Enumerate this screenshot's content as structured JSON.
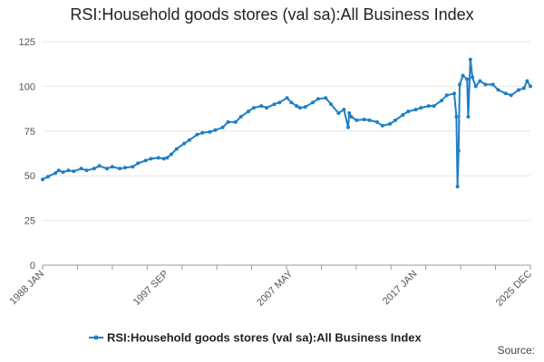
{
  "chart_data": {
    "type": "line",
    "title": "RSI:Household goods stores (val sa):All Business Index",
    "xlabel": "",
    "ylabel": "",
    "ylim": [
      0,
      125
    ],
    "yticks": [
      "0",
      "25",
      "50",
      "75",
      "100",
      "125"
    ],
    "xticks": [
      {
        "label": "1988 JAN",
        "date": 1988.0
      },
      {
        "label": "1997 SEP",
        "date": 1997.667
      },
      {
        "label": "2007 MAY",
        "date": 2007.333
      },
      {
        "label": "2017 JAN",
        "date": 2017.0
      },
      {
        "label": "2025 DEC",
        "date": 2025.917
      }
    ],
    "grid": "horizontal",
    "legend": "bottom",
    "series": [
      {
        "name": "RSI:Household goods stores (val sa):All Business Index",
        "color": "#1f7fc4",
        "points": [
          [
            "1988-01",
            48
          ],
          [
            "1988-06",
            49.5
          ],
          [
            "1989-01",
            51.5
          ],
          [
            "1989-04",
            53
          ],
          [
            "1989-08",
            52
          ],
          [
            "1990-01",
            53
          ],
          [
            "1990-06",
            52.5
          ],
          [
            "1991-01",
            54
          ],
          [
            "1991-06",
            53
          ],
          [
            "1992-01",
            54
          ],
          [
            "1992-06",
            55.5
          ],
          [
            "1993-01",
            54
          ],
          [
            "1993-06",
            55
          ],
          [
            "1994-01",
            54
          ],
          [
            "1994-06",
            54.5
          ],
          [
            "1995-01",
            55
          ],
          [
            "1995-06",
            57
          ],
          [
            "1996-01",
            58.5
          ],
          [
            "1996-06",
            59.5
          ],
          [
            "1997-01",
            60
          ],
          [
            "1997-06",
            59.5
          ],
          [
            "1997-09",
            60
          ],
          [
            "1998-01",
            62
          ],
          [
            "1998-06",
            65
          ],
          [
            "1999-01",
            68
          ],
          [
            "1999-06",
            70
          ],
          [
            "2000-01",
            73
          ],
          [
            "2000-06",
            74
          ],
          [
            "2001-01",
            74.5
          ],
          [
            "2001-06",
            75.5
          ],
          [
            "2002-01",
            77
          ],
          [
            "2002-06",
            80
          ],
          [
            "2003-01",
            80
          ],
          [
            "2003-06",
            83
          ],
          [
            "2004-01",
            86
          ],
          [
            "2004-06",
            88
          ],
          [
            "2005-01",
            89
          ],
          [
            "2005-06",
            88
          ],
          [
            "2006-01",
            90
          ],
          [
            "2006-06",
            91
          ],
          [
            "2007-01",
            93.5
          ],
          [
            "2007-05",
            91
          ],
          [
            "2007-10",
            89
          ],
          [
            "2008-01",
            88
          ],
          [
            "2008-06",
            88.5
          ],
          [
            "2009-01",
            91
          ],
          [
            "2009-06",
            93
          ],
          [
            "2010-01",
            93.5
          ],
          [
            "2010-06",
            90
          ],
          [
            "2011-01",
            85
          ],
          [
            "2011-06",
            87
          ],
          [
            "2011-10",
            77
          ],
          [
            "2011-11",
            85
          ],
          [
            "2012-01",
            83
          ],
          [
            "2012-06",
            81
          ],
          [
            "2013-01",
            81.5
          ],
          [
            "2013-06",
            81
          ],
          [
            "2014-01",
            80
          ],
          [
            "2014-06",
            78
          ],
          [
            "2015-01",
            79
          ],
          [
            "2015-06",
            81
          ],
          [
            "2016-01",
            84
          ],
          [
            "2016-06",
            86
          ],
          [
            "2017-01",
            87
          ],
          [
            "2017-06",
            88
          ],
          [
            "2018-01",
            89
          ],
          [
            "2018-06",
            89
          ],
          [
            "2019-01",
            92
          ],
          [
            "2019-06",
            95
          ],
          [
            "2020-01",
            96
          ],
          [
            "2020-03",
            83
          ],
          [
            "2020-04",
            44
          ],
          [
            "2020-05",
            64
          ],
          [
            "2020-06",
            101
          ],
          [
            "2020-09",
            106
          ],
          [
            "2021-01",
            104
          ],
          [
            "2021-02",
            83
          ],
          [
            "2021-04",
            115
          ],
          [
            "2021-06",
            105
          ],
          [
            "2021-09",
            100
          ],
          [
            "2022-01",
            103
          ],
          [
            "2022-06",
            101
          ],
          [
            "2023-01",
            101
          ],
          [
            "2023-06",
            98
          ],
          [
            "2024-01",
            96
          ],
          [
            "2024-06",
            95
          ],
          [
            "2025-01",
            98
          ],
          [
            "2025-06",
            99
          ],
          [
            "2025-09",
            103
          ],
          [
            "2025-12",
            100
          ]
        ]
      }
    ],
    "source_label": "Source:"
  }
}
